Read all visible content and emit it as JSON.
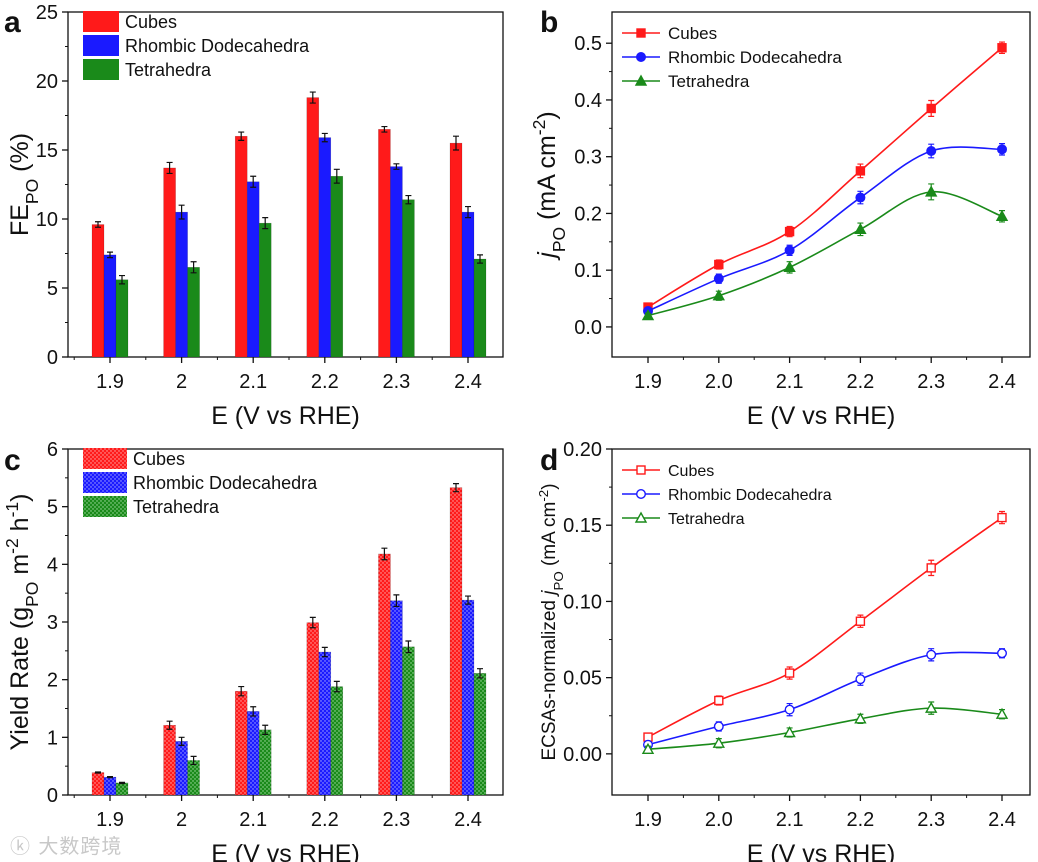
{
  "colors": {
    "cubes": "#ff1a1a",
    "rd": "#1a1aff",
    "tetra": "#1a8a1a",
    "axis": "#111111"
  },
  "watermark": "大数跨境",
  "chart_data": [
    {
      "panel": "a",
      "type": "bar",
      "categories": [
        "1.9",
        "2",
        "2.1",
        "2.2",
        "2.3",
        "2.4"
      ],
      "xlabel": "E (V vs RHE)",
      "ylabel": [
        {
          "t": "FE"
        },
        {
          "t": "PO",
          "sub": true
        },
        {
          "t": " (%)"
        }
      ],
      "ylim": [
        0,
        25
      ],
      "yticks": [
        0,
        5,
        10,
        15,
        20,
        25
      ],
      "legend": "top-left",
      "series": [
        {
          "name": "Cubes",
          "color": "#ff1a1a",
          "values": [
            9.6,
            13.7,
            16.0,
            18.8,
            16.5,
            15.5
          ],
          "err": [
            0.2,
            0.4,
            0.3,
            0.4,
            0.2,
            0.5
          ]
        },
        {
          "name": "Rhombic Dodecahedra",
          "color": "#1a1aff",
          "values": [
            7.4,
            10.5,
            12.7,
            15.9,
            13.8,
            10.5
          ],
          "err": [
            0.2,
            0.5,
            0.4,
            0.3,
            0.2,
            0.4
          ]
        },
        {
          "name": "Tetrahedra",
          "color": "#1a8a1a",
          "values": [
            5.6,
            6.5,
            9.7,
            13.1,
            11.4,
            7.1
          ],
          "err": [
            0.3,
            0.4,
            0.4,
            0.5,
            0.3,
            0.3
          ]
        }
      ]
    },
    {
      "panel": "b",
      "type": "line",
      "x": [
        1.9,
        2.0,
        2.1,
        2.2,
        2.3,
        2.4
      ],
      "xticks": [
        "1.9",
        "2.0",
        "2.1",
        "2.2",
        "2.3",
        "2.4"
      ],
      "xlabel": "E (V vs RHE)",
      "ylabel": [
        {
          "t": "j",
          "it": true
        },
        {
          "t": "PO",
          "sub": true
        },
        {
          "t": " (mA cm"
        },
        {
          "t": "-2",
          "sup": true
        },
        {
          "t": ")"
        }
      ],
      "ylim": [
        -0.053,
        0.555
      ],
      "yticks": [
        "0.0",
        "0.1",
        "0.2",
        "0.3",
        "0.4",
        "0.5"
      ],
      "marker_fill": "filled",
      "legend": "top-left",
      "series": [
        {
          "name": "Cubes",
          "marker": "square",
          "color": "#ff1a1a",
          "values": [
            0.035,
            0.11,
            0.168,
            0.275,
            0.385,
            0.492
          ],
          "err": [
            0.004,
            0.008,
            0.009,
            0.012,
            0.014,
            0.01
          ]
        },
        {
          "name": "Rhombic Dodecahedra",
          "marker": "circle",
          "color": "#1a1aff",
          "values": [
            0.028,
            0.085,
            0.135,
            0.228,
            0.31,
            0.313
          ],
          "err": [
            0.004,
            0.008,
            0.009,
            0.011,
            0.012,
            0.01
          ]
        },
        {
          "name": "Tetrahedra",
          "marker": "triangle",
          "color": "#1a8a1a",
          "values": [
            0.02,
            0.055,
            0.105,
            0.172,
            0.238,
            0.195
          ],
          "err": [
            0.004,
            0.008,
            0.01,
            0.011,
            0.014,
            0.01
          ]
        }
      ]
    },
    {
      "panel": "c",
      "type": "bar",
      "categories": [
        "1.9",
        "2",
        "2.1",
        "2.2",
        "2.3",
        "2.4"
      ],
      "xlabel": "E (V vs RHE)",
      "ylabel": [
        {
          "t": "Yield Rate (g"
        },
        {
          "t": "PO",
          "sub": true
        },
        {
          "t": " m"
        },
        {
          "t": "-2",
          "sup": true
        },
        {
          "t": " h"
        },
        {
          "t": "-1",
          "sup": true
        },
        {
          "t": ")"
        }
      ],
      "ylim": [
        0,
        6
      ],
      "yticks": [
        0,
        1,
        2,
        3,
        4,
        5,
        6
      ],
      "pattern": "dotted",
      "legend": "top-left",
      "series": [
        {
          "name": "Cubes",
          "color": "#ff1a1a",
          "values": [
            0.39,
            1.21,
            1.8,
            2.99,
            4.18,
            5.33
          ],
          "err": [
            0.01,
            0.07,
            0.08,
            0.09,
            0.1,
            0.07
          ]
        },
        {
          "name": "Rhombic Dodecahedra",
          "color": "#1a1aff",
          "values": [
            0.31,
            0.93,
            1.45,
            2.48,
            3.37,
            3.38
          ],
          "err": [
            0.01,
            0.07,
            0.08,
            0.08,
            0.1,
            0.07
          ]
        },
        {
          "name": "Tetrahedra",
          "color": "#1a8a1a",
          "values": [
            0.21,
            0.6,
            1.13,
            1.88,
            2.57,
            2.11
          ],
          "err": [
            0.01,
            0.07,
            0.08,
            0.09,
            0.1,
            0.08
          ]
        }
      ]
    },
    {
      "panel": "d",
      "type": "line",
      "x": [
        1.9,
        2.0,
        2.1,
        2.2,
        2.3,
        2.4
      ],
      "xticks": [
        "1.9",
        "2.0",
        "2.1",
        "2.2",
        "2.3",
        "2.4"
      ],
      "xlabel": "E (V vs RHE)",
      "ylabel": [
        {
          "t": "ECSAs-normalized "
        },
        {
          "t": "j",
          "it": true
        },
        {
          "t": "PO",
          "sub": true
        },
        {
          "t": " (mA cm"
        },
        {
          "t": "-2",
          "sup": true
        },
        {
          "t": ")"
        }
      ],
      "ylim": [
        -0.027,
        0.2
      ],
      "yticks": [
        "0.00",
        "0.05",
        "0.10",
        "0.15",
        "0.20"
      ],
      "marker_fill": "open",
      "legend": "top-left",
      "series": [
        {
          "name": "Cubes",
          "marker": "square",
          "color": "#ff1a1a",
          "values": [
            0.011,
            0.035,
            0.053,
            0.087,
            0.122,
            0.155
          ],
          "err": [
            0.002,
            0.003,
            0.004,
            0.004,
            0.005,
            0.004
          ]
        },
        {
          "name": "Rhombic Dodecahedra",
          "marker": "circle",
          "color": "#1a1aff",
          "values": [
            0.006,
            0.018,
            0.029,
            0.049,
            0.065,
            0.066
          ],
          "err": [
            0.002,
            0.003,
            0.004,
            0.004,
            0.004,
            0.003
          ]
        },
        {
          "name": "Tetrahedra",
          "marker": "triangle",
          "color": "#1a8a1a",
          "values": [
            0.003,
            0.007,
            0.014,
            0.023,
            0.03,
            0.026
          ],
          "err": [
            0.002,
            0.003,
            0.003,
            0.003,
            0.004,
            0.003
          ]
        }
      ]
    }
  ]
}
